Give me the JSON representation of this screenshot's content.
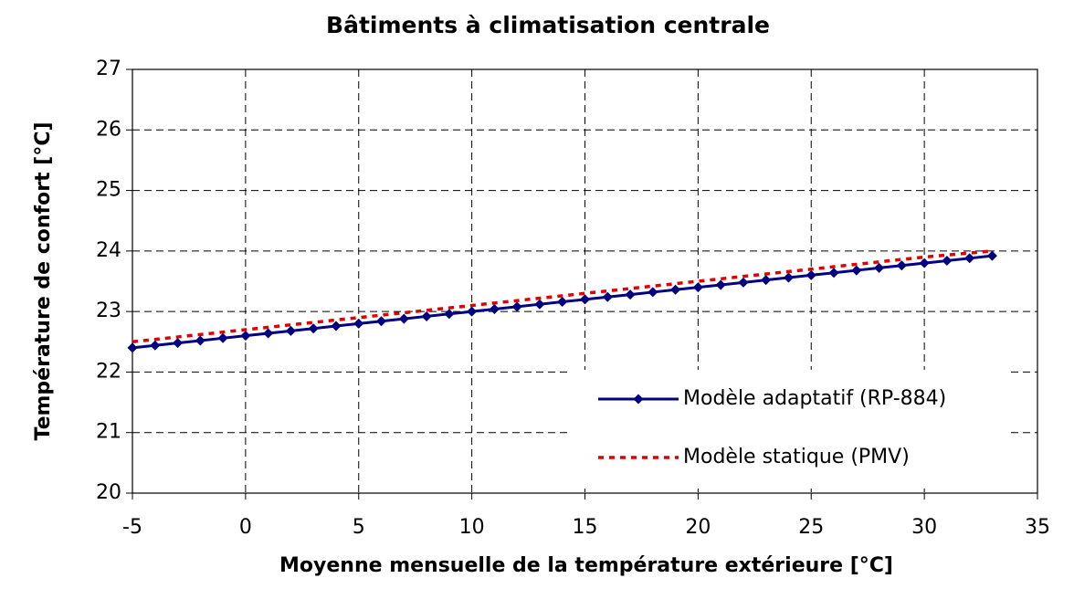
{
  "chart_data": {
    "type": "line",
    "title": "Bâtiments à climatisation centrale",
    "xlabel": "Moyenne mensuelle de la température extérieure [°C]",
    "ylabel": "Température de confort [°C]",
    "xlim": [
      -5,
      35
    ],
    "xticks": [
      -5,
      0,
      5,
      10,
      15,
      20,
      25,
      30,
      35
    ],
    "ylim": [
      20,
      27
    ],
    "yticks": [
      20,
      21,
      22,
      23,
      24,
      25,
      26,
      27
    ],
    "grid": true,
    "legend": "lower right",
    "series": [
      {
        "name": "Modèle adaptatif (RP-884)",
        "color": "#000080",
        "style": "solid",
        "marker": "diamond",
        "x": [
          -5,
          -4,
          -3,
          -2,
          -1,
          0,
          1,
          2,
          3,
          4,
          5,
          6,
          7,
          8,
          9,
          10,
          11,
          12,
          13,
          14,
          15,
          16,
          17,
          18,
          19,
          20,
          21,
          22,
          23,
          24,
          25,
          26,
          27,
          28,
          29,
          30,
          31,
          32,
          33
        ],
        "values": [
          22.4,
          22.44,
          22.48,
          22.52,
          22.56,
          22.6,
          22.64,
          22.68,
          22.72,
          22.76,
          22.8,
          22.84,
          22.88,
          22.92,
          22.96,
          23.0,
          23.04,
          23.08,
          23.12,
          23.16,
          23.2,
          23.24,
          23.28,
          23.32,
          23.36,
          23.4,
          23.44,
          23.48,
          23.52,
          23.56,
          23.6,
          23.64,
          23.68,
          23.72,
          23.76,
          23.8,
          23.84,
          23.88,
          23.92
        ]
      },
      {
        "name": "Modèle statique (PMV)",
        "color": "#e00000",
        "style": "dotted",
        "marker": "none",
        "x": [
          -5,
          0,
          5,
          10,
          15,
          20,
          25,
          30,
          33
        ],
        "values": [
          22.5,
          22.7,
          22.9,
          23.1,
          23.3,
          23.5,
          23.7,
          23.9,
          24.0
        ]
      }
    ]
  }
}
